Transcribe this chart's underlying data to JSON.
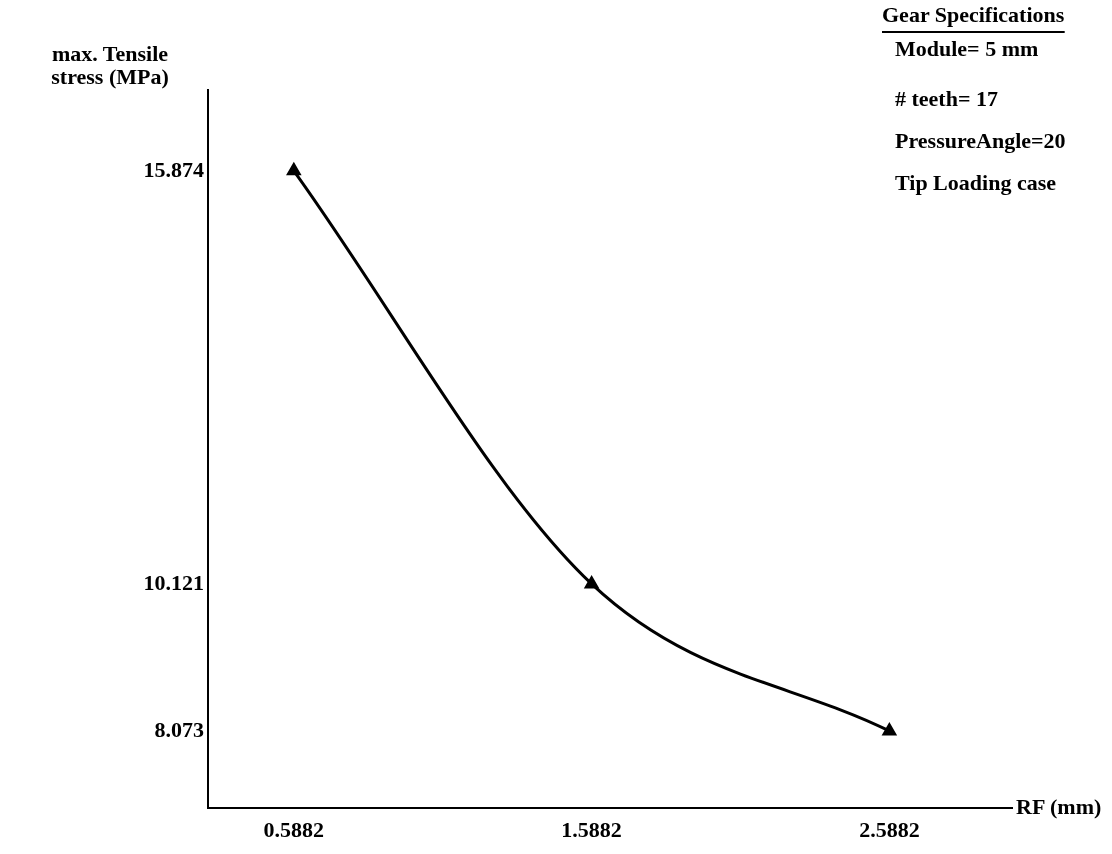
{
  "chart_data": {
    "type": "line",
    "xlabel": "RF (mm)",
    "ylabel": "max. Tensile stress (MPa)",
    "x": [
      0.5882,
      1.5882,
      2.5882
    ],
    "series": [
      {
        "color": "#000000",
        "values": [
          15.874,
          10.121,
          8.073
        ]
      }
    ],
    "xlim": [
      0.3,
      3.0
    ],
    "xticks": [
      0.5882,
      1.5882,
      2.5882
    ],
    "ylim": [
      7,
      17
    ],
    "yticks": [
      8.073,
      10.121,
      15.874
    ],
    "grid": false,
    "legend": false,
    "marker": "triangle",
    "line_style": "solid",
    "annotations": [
      "Gear Specifications",
      "Module= 5 mm",
      "# teeth= 17",
      "PressureAngle=20",
      "Tip Loading case"
    ]
  }
}
